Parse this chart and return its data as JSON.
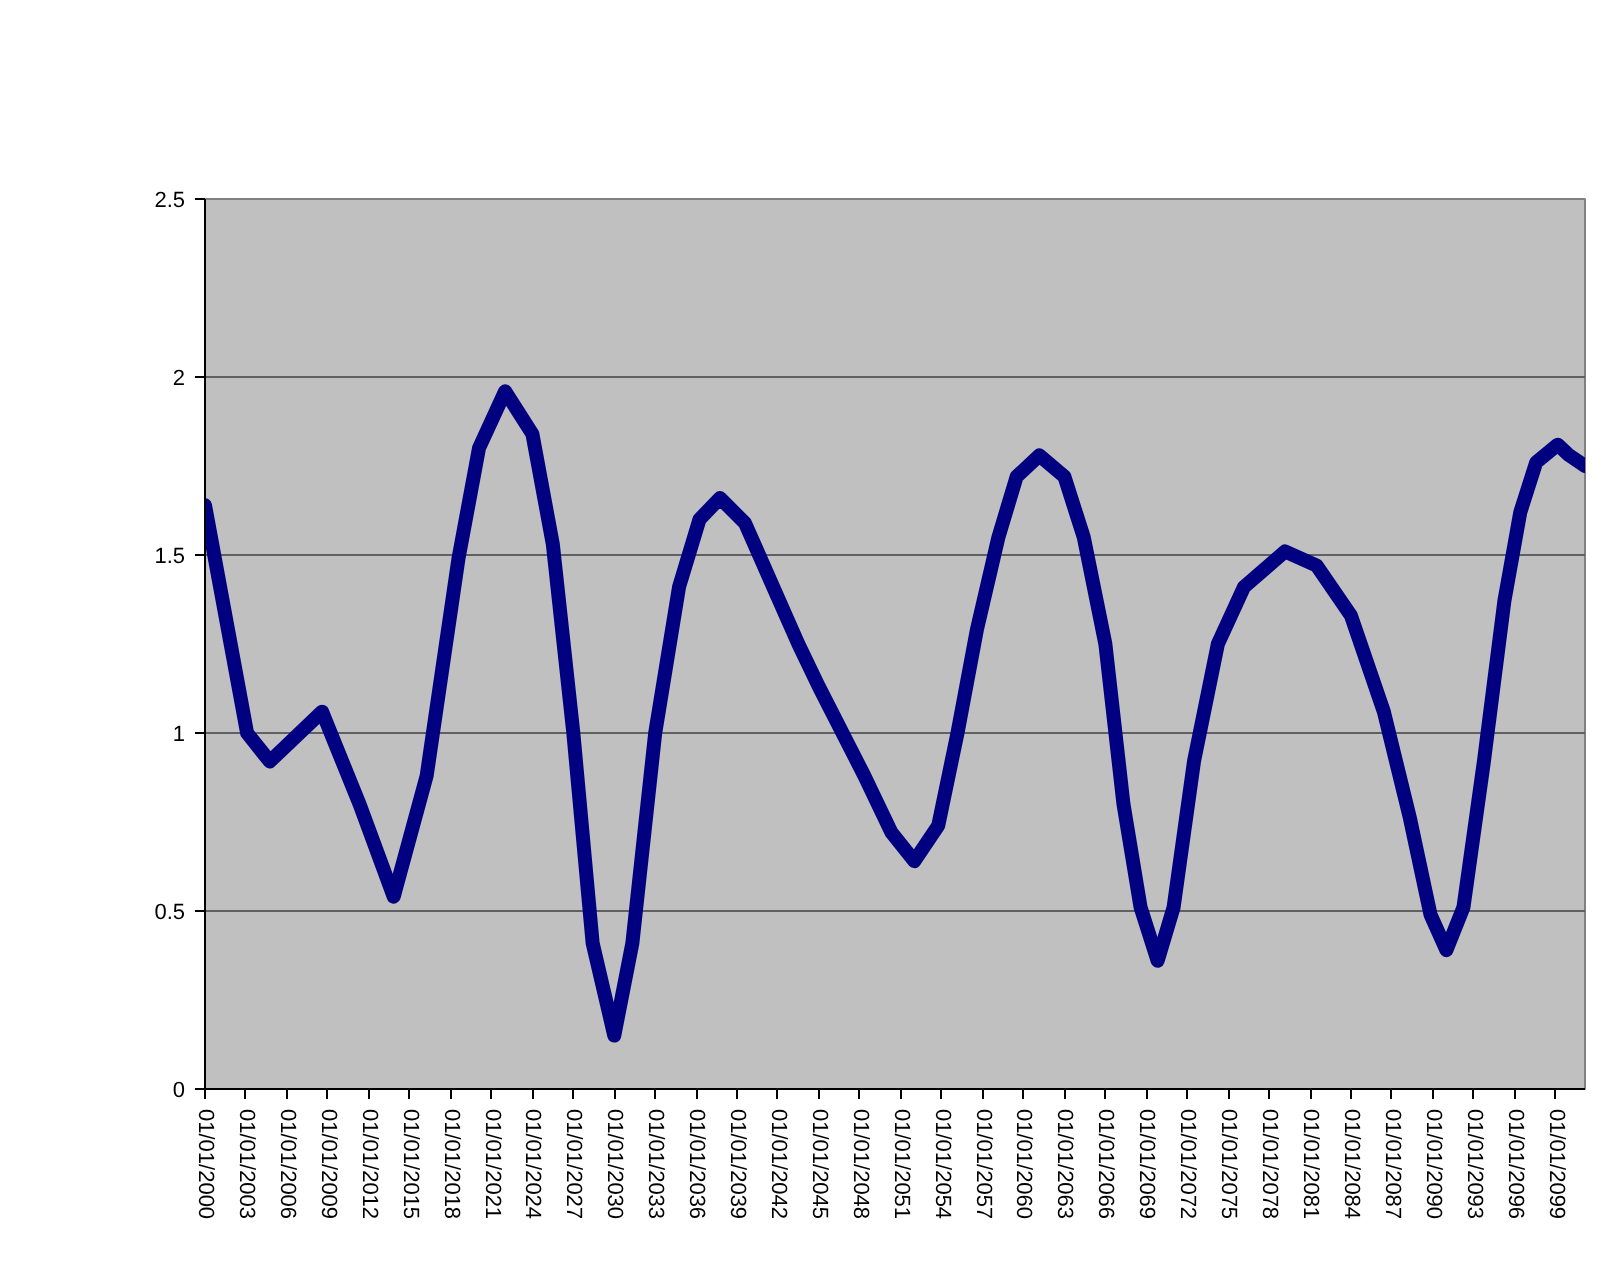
{
  "chart_data": {
    "type": "line",
    "x": [
      "2000-01",
      "2003-02",
      "2004-10",
      "2008-08",
      "2011-05",
      "2013-11",
      "2016-04",
      "2018-08",
      "2020-02",
      "2022-01",
      "2024-01",
      "2025-07",
      "2027-01",
      "2028-06",
      "2030-01",
      "2031-05",
      "2033-01",
      "2034-10",
      "2036-04",
      "2037-10",
      "2039-08",
      "2043-07",
      "2045-01",
      "2048-05",
      "2050-05",
      "2052-01",
      "2053-10",
      "2055-03",
      "2056-08",
      "2058-03",
      "2059-07",
      "2061-03",
      "2063-01",
      "2064-06",
      "2066-01",
      "2067-05",
      "2068-08",
      "2069-11",
      "2071-01",
      "2072-07",
      "2074-04",
      "2076-03",
      "2079-03",
      "2081-07",
      "2084-01",
      "2086-06",
      "2088-05",
      "2089-11",
      "2091-01",
      "2092-04",
      "2093-10",
      "2095-04",
      "2096-06",
      "2097-08",
      "2099-03",
      "2100-01",
      "2101-03"
    ],
    "series": [
      {
        "color": "#000080",
        "values": [
          1.64,
          1.0,
          0.92,
          1.06,
          0.8,
          0.54,
          0.88,
          1.49,
          1.8,
          1.96,
          1.84,
          1.53,
          1.0,
          0.41,
          0.15,
          0.41,
          1.0,
          1.41,
          1.6,
          1.66,
          1.59,
          1.25,
          1.13,
          0.88,
          0.72,
          0.64,
          0.74,
          1.0,
          1.29,
          1.55,
          1.72,
          1.78,
          1.72,
          1.55,
          1.25,
          0.8,
          0.51,
          0.36,
          0.51,
          0.92,
          1.25,
          1.41,
          1.51,
          1.47,
          1.33,
          1.06,
          0.76,
          0.49,
          0.39,
          0.51,
          0.92,
          1.37,
          1.62,
          1.76,
          1.81,
          1.78,
          1.75
        ]
      }
    ],
    "xlim": [
      "2000-01",
      "2101-03"
    ],
    "xticks": [
      {
        "value": "2000-01-01",
        "label": "01/01/2000"
      },
      {
        "value": "2003-01-01",
        "label": "01/01/2003"
      },
      {
        "value": "2006-01-01",
        "label": "01/01/2006"
      },
      {
        "value": "2009-01-01",
        "label": "01/01/2009"
      },
      {
        "value": "2012-01-01",
        "label": "01/01/2012"
      },
      {
        "value": "2015-01-01",
        "label": "01/01/2015"
      },
      {
        "value": "2018-01-01",
        "label": "01/01/2018"
      },
      {
        "value": "2021-01-01",
        "label": "01/01/2021"
      },
      {
        "value": "2024-01-01",
        "label": "01/01/2024"
      },
      {
        "value": "2027-01-01",
        "label": "01/01/2027"
      },
      {
        "value": "2030-01-01",
        "label": "01/01/2030"
      },
      {
        "value": "2033-01-01",
        "label": "01/01/2033"
      },
      {
        "value": "2036-01-01",
        "label": "01/01/2036"
      },
      {
        "value": "2039-01-01",
        "label": "01/01/2039"
      },
      {
        "value": "2042-01-01",
        "label": "01/01/2042"
      },
      {
        "value": "2045-01-01",
        "label": "01/01/2045"
      },
      {
        "value": "2048-01-01",
        "label": "01/01/2048"
      },
      {
        "value": "2051-01-01",
        "label": "01/01/2051"
      },
      {
        "value": "2054-01-01",
        "label": "01/01/2054"
      },
      {
        "value": "2057-01-01",
        "label": "01/01/2057"
      },
      {
        "value": "2060-01-01",
        "label": "01/01/2060"
      },
      {
        "value": "2063-01-01",
        "label": "01/01/2063"
      },
      {
        "value": "2066-01-01",
        "label": "01/01/2066"
      },
      {
        "value": "2069-01-01",
        "label": "01/01/2069"
      },
      {
        "value": "2072-01-01",
        "label": "01/01/2072"
      },
      {
        "value": "2075-01-01",
        "label": "01/01/2075"
      },
      {
        "value": "2078-01-01",
        "label": "01/01/2078"
      },
      {
        "value": "2081-01-01",
        "label": "01/01/2081"
      },
      {
        "value": "2084-01-01",
        "label": "01/01/2084"
      },
      {
        "value": "2087-01-01",
        "label": "01/01/2087"
      },
      {
        "value": "2090-01-01",
        "label": "01/01/2090"
      },
      {
        "value": "2093-01-01",
        "label": "01/01/2093"
      },
      {
        "value": "2096-01-01",
        "label": "01/01/2096"
      },
      {
        "value": "2099-01-01",
        "label": "01/01/2099"
      }
    ],
    "ylim": [
      0,
      2.5
    ],
    "yticks": [
      0,
      0.5,
      1,
      1.5,
      2,
      2.5
    ],
    "grid": "y",
    "line_style": "solid"
  }
}
